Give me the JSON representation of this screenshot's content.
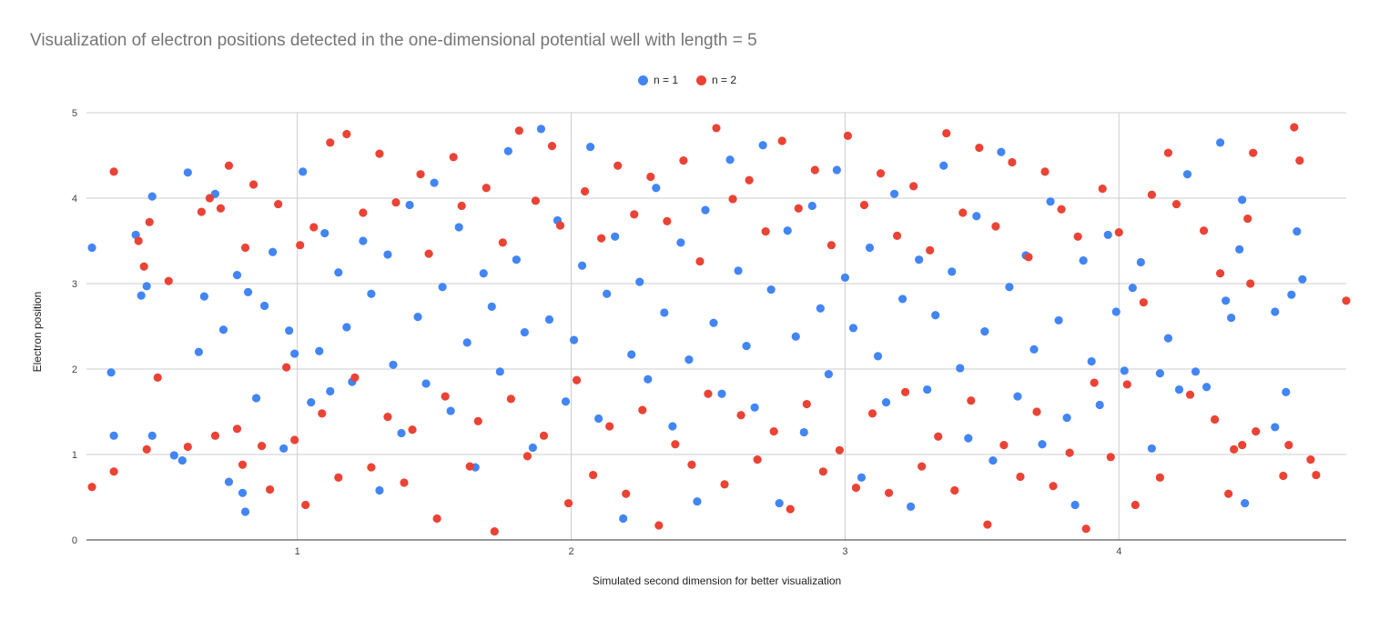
{
  "chart_data": {
    "type": "scatter",
    "title": "Visualization of electron positions detected in the one-dimensional potential well with length = 5",
    "xlabel": "Simulated second dimension for better visualization",
    "ylabel": "Electron position",
    "xlim": [
      0.23,
      4.83
    ],
    "ylim": [
      0,
      5
    ],
    "x_ticks": [
      "1",
      "2",
      "3",
      "4"
    ],
    "y_ticks": [
      "0",
      "1",
      "2",
      "3",
      "4",
      "5"
    ],
    "grid": true,
    "legend_position": "top",
    "series": [
      {
        "name": "n = 1",
        "color": "#4285f4",
        "note_count": "approximate sample of plotted points",
        "points": [
          [
            0.25,
            3.42
          ],
          [
            0.32,
            1.96
          ],
          [
            0.33,
            1.22
          ],
          [
            0.41,
            3.57
          ],
          [
            0.43,
            2.86
          ],
          [
            0.45,
            2.97
          ],
          [
            0.47,
            4.02
          ],
          [
            0.47,
            1.22
          ],
          [
            0.55,
            0.99
          ],
          [
            0.58,
            0.93
          ],
          [
            0.6,
            4.3
          ],
          [
            0.64,
            2.2
          ],
          [
            0.66,
            2.85
          ],
          [
            0.7,
            4.05
          ],
          [
            0.73,
            2.46
          ],
          [
            0.75,
            0.68
          ],
          [
            0.78,
            3.1
          ],
          [
            0.8,
            0.55
          ],
          [
            0.81,
            0.33
          ],
          [
            0.82,
            2.9
          ],
          [
            0.85,
            1.66
          ],
          [
            0.88,
            2.74
          ],
          [
            0.91,
            3.37
          ],
          [
            0.95,
            1.07
          ],
          [
            0.97,
            2.45
          ],
          [
            0.99,
            2.18
          ],
          [
            1.02,
            4.31
          ],
          [
            1.05,
            1.61
          ],
          [
            1.08,
            2.21
          ],
          [
            1.1,
            3.59
          ],
          [
            1.12,
            1.74
          ],
          [
            1.15,
            3.13
          ],
          [
            1.18,
            2.49
          ],
          [
            1.2,
            1.85
          ],
          [
            1.24,
            3.5
          ],
          [
            1.27,
            2.88
          ],
          [
            1.3,
            0.58
          ],
          [
            1.33,
            3.34
          ],
          [
            1.35,
            2.05
          ],
          [
            1.38,
            1.25
          ],
          [
            1.41,
            3.92
          ],
          [
            1.44,
            2.61
          ],
          [
            1.47,
            1.83
          ],
          [
            1.5,
            4.18
          ],
          [
            1.53,
            2.96
          ],
          [
            1.56,
            1.51
          ],
          [
            1.59,
            3.66
          ],
          [
            1.62,
            2.31
          ],
          [
            1.65,
            0.85
          ],
          [
            1.68,
            3.12
          ],
          [
            1.71,
            2.73
          ],
          [
            1.74,
            1.97
          ],
          [
            1.77,
            4.55
          ],
          [
            1.8,
            3.28
          ],
          [
            1.83,
            2.43
          ],
          [
            1.86,
            1.08
          ],
          [
            1.89,
            4.81
          ],
          [
            1.92,
            2.58
          ],
          [
            1.95,
            3.74
          ],
          [
            1.98,
            1.62
          ],
          [
            2.01,
            2.34
          ],
          [
            2.04,
            3.21
          ],
          [
            2.07,
            4.6
          ],
          [
            2.1,
            1.42
          ],
          [
            2.13,
            2.88
          ],
          [
            2.16,
            3.55
          ],
          [
            2.19,
            0.25
          ],
          [
            2.22,
            2.17
          ],
          [
            2.25,
            3.02
          ],
          [
            2.28,
            1.88
          ],
          [
            2.31,
            4.12
          ],
          [
            2.34,
            2.66
          ],
          [
            2.37,
            1.33
          ],
          [
            2.4,
            3.48
          ],
          [
            2.43,
            2.11
          ],
          [
            2.46,
            0.45
          ],
          [
            2.49,
            3.86
          ],
          [
            2.52,
            2.54
          ],
          [
            2.55,
            1.71
          ],
          [
            2.58,
            4.45
          ],
          [
            2.61,
            3.15
          ],
          [
            2.64,
            2.27
          ],
          [
            2.67,
            1.55
          ],
          [
            2.7,
            4.62
          ],
          [
            2.73,
            2.93
          ],
          [
            2.76,
            0.43
          ],
          [
            2.79,
            3.62
          ],
          [
            2.82,
            2.38
          ],
          [
            2.85,
            1.26
          ],
          [
            2.88,
            3.91
          ],
          [
            2.91,
            2.71
          ],
          [
            2.94,
            1.94
          ],
          [
            2.97,
            4.33
          ],
          [
            3.0,
            3.07
          ],
          [
            3.03,
            2.48
          ],
          [
            3.06,
            0.73
          ],
          [
            3.09,
            3.42
          ],
          [
            3.12,
            2.15
          ],
          [
            3.15,
            1.61
          ],
          [
            3.18,
            4.05
          ],
          [
            3.21,
            2.82
          ],
          [
            3.24,
            0.39
          ],
          [
            3.27,
            3.28
          ],
          [
            3.3,
            1.76
          ],
          [
            3.33,
            2.63
          ],
          [
            3.36,
            4.38
          ],
          [
            3.39,
            3.14
          ],
          [
            3.42,
            2.01
          ],
          [
            3.45,
            1.19
          ],
          [
            3.48,
            3.79
          ],
          [
            3.51,
            2.44
          ],
          [
            3.54,
            0.93
          ],
          [
            3.57,
            4.54
          ],
          [
            3.6,
            2.96
          ],
          [
            3.63,
            1.68
          ],
          [
            3.66,
            3.33
          ],
          [
            3.69,
            2.23
          ],
          [
            3.72,
            1.12
          ],
          [
            3.75,
            3.96
          ],
          [
            3.78,
            2.57
          ],
          [
            3.81,
            1.43
          ],
          [
            3.84,
            0.41
          ],
          [
            3.87,
            3.27
          ],
          [
            3.9,
            2.09
          ],
          [
            3.93,
            1.58
          ],
          [
            3.96,
            3.57
          ],
          [
            3.99,
            2.67
          ],
          [
            4.02,
            1.98
          ],
          [
            4.05,
            2.95
          ],
          [
            4.08,
            3.25
          ],
          [
            4.12,
            1.07
          ],
          [
            4.15,
            1.95
          ],
          [
            4.18,
            2.36
          ],
          [
            4.22,
            1.76
          ],
          [
            4.25,
            4.28
          ],
          [
            4.28,
            1.97
          ],
          [
            4.32,
            1.79
          ],
          [
            4.37,
            4.65
          ],
          [
            4.39,
            2.8
          ],
          [
            4.41,
            2.6
          ],
          [
            4.44,
            3.4
          ],
          [
            4.45,
            3.98
          ],
          [
            4.46,
            0.43
          ],
          [
            4.57,
            1.32
          ],
          [
            4.57,
            2.67
          ],
          [
            4.61,
            1.73
          ],
          [
            4.63,
            2.87
          ],
          [
            4.65,
            3.61
          ],
          [
            4.67,
            3.05
          ]
        ]
      },
      {
        "name": "n = 2",
        "color": "#ea4335",
        "note_count": "approximate sample of plotted points",
        "points": [
          [
            0.25,
            0.62
          ],
          [
            0.33,
            0.8
          ],
          [
            0.33,
            4.31
          ],
          [
            0.42,
            3.5
          ],
          [
            0.44,
            3.2
          ],
          [
            0.45,
            1.06
          ],
          [
            0.46,
            3.72
          ],
          [
            0.49,
            1.9
          ],
          [
            0.53,
            3.03
          ],
          [
            0.6,
            1.09
          ],
          [
            0.65,
            3.84
          ],
          [
            0.68,
            4.0
          ],
          [
            0.7,
            1.22
          ],
          [
            0.72,
            3.88
          ],
          [
            0.75,
            4.38
          ],
          [
            0.78,
            1.3
          ],
          [
            0.8,
            0.88
          ],
          [
            0.81,
            3.42
          ],
          [
            0.84,
            4.16
          ],
          [
            0.87,
            1.1
          ],
          [
            0.9,
            0.59
          ],
          [
            0.93,
            3.93
          ],
          [
            0.96,
            2.02
          ],
          [
            0.99,
            1.17
          ],
          [
            1.01,
            3.45
          ],
          [
            1.03,
            0.41
          ],
          [
            1.06,
            3.66
          ],
          [
            1.09,
            1.48
          ],
          [
            1.12,
            4.65
          ],
          [
            1.15,
            0.73
          ],
          [
            1.18,
            4.75
          ],
          [
            1.21,
            1.9
          ],
          [
            1.24,
            3.83
          ],
          [
            1.27,
            0.85
          ],
          [
            1.3,
            4.52
          ],
          [
            1.33,
            1.44
          ],
          [
            1.36,
            3.95
          ],
          [
            1.39,
            0.67
          ],
          [
            1.42,
            1.29
          ],
          [
            1.45,
            4.28
          ],
          [
            1.48,
            3.35
          ],
          [
            1.51,
            0.25
          ],
          [
            1.54,
            1.68
          ],
          [
            1.57,
            4.48
          ],
          [
            1.6,
            3.91
          ],
          [
            1.63,
            0.86
          ],
          [
            1.66,
            1.39
          ],
          [
            1.69,
            4.12
          ],
          [
            1.72,
            0.1
          ],
          [
            1.75,
            3.48
          ],
          [
            1.78,
            1.65
          ],
          [
            1.81,
            4.79
          ],
          [
            1.84,
            0.98
          ],
          [
            1.87,
            3.97
          ],
          [
            1.9,
            1.22
          ],
          [
            1.93,
            4.61
          ],
          [
            1.96,
            3.68
          ],
          [
            1.99,
            0.43
          ],
          [
            2.02,
            1.87
          ],
          [
            2.05,
            4.08
          ],
          [
            2.08,
            0.76
          ],
          [
            2.11,
            3.53
          ],
          [
            2.14,
            1.33
          ],
          [
            2.17,
            4.38
          ],
          [
            2.2,
            0.54
          ],
          [
            2.23,
            3.81
          ],
          [
            2.26,
            1.52
          ],
          [
            2.29,
            4.25
          ],
          [
            2.32,
            0.17
          ],
          [
            2.35,
            3.73
          ],
          [
            2.38,
            1.12
          ],
          [
            2.41,
            4.44
          ],
          [
            2.44,
            0.88
          ],
          [
            2.47,
            3.26
          ],
          [
            2.5,
            1.71
          ],
          [
            2.53,
            4.82
          ],
          [
            2.56,
            0.65
          ],
          [
            2.59,
            3.99
          ],
          [
            2.62,
            1.46
          ],
          [
            2.65,
            4.21
          ],
          [
            2.68,
            0.94
          ],
          [
            2.71,
            3.61
          ],
          [
            2.74,
            1.27
          ],
          [
            2.77,
            4.67
          ],
          [
            2.8,
            0.36
          ],
          [
            2.83,
            3.88
          ],
          [
            2.86,
            1.59
          ],
          [
            2.89,
            4.33
          ],
          [
            2.92,
            0.8
          ],
          [
            2.95,
            3.45
          ],
          [
            2.98,
            1.05
          ],
          [
            3.01,
            4.73
          ],
          [
            3.04,
            0.61
          ],
          [
            3.07,
            3.92
          ],
          [
            3.1,
            1.48
          ],
          [
            3.13,
            4.29
          ],
          [
            3.16,
            0.55
          ],
          [
            3.19,
            3.56
          ],
          [
            3.22,
            1.73
          ],
          [
            3.25,
            4.14
          ],
          [
            3.28,
            0.86
          ],
          [
            3.31,
            3.39
          ],
          [
            3.34,
            1.21
          ],
          [
            3.37,
            4.76
          ],
          [
            3.4,
            0.58
          ],
          [
            3.43,
            3.83
          ],
          [
            3.46,
            1.63
          ],
          [
            3.49,
            4.59
          ],
          [
            3.52,
            0.18
          ],
          [
            3.55,
            3.67
          ],
          [
            3.58,
            1.11
          ],
          [
            3.61,
            4.42
          ],
          [
            3.64,
            0.74
          ],
          [
            3.67,
            3.31
          ],
          [
            3.7,
            1.5
          ],
          [
            3.73,
            4.31
          ],
          [
            3.76,
            0.63
          ],
          [
            3.79,
            3.87
          ],
          [
            3.82,
            1.02
          ],
          [
            3.85,
            3.55
          ],
          [
            3.88,
            0.13
          ],
          [
            3.91,
            1.84
          ],
          [
            3.94,
            4.11
          ],
          [
            3.97,
            0.97
          ],
          [
            4.0,
            3.6
          ],
          [
            4.03,
            1.82
          ],
          [
            4.06,
            0.41
          ],
          [
            4.09,
            2.78
          ],
          [
            4.12,
            4.04
          ],
          [
            4.15,
            0.73
          ],
          [
            4.18,
            4.53
          ],
          [
            4.21,
            3.93
          ],
          [
            4.26,
            1.7
          ],
          [
            4.31,
            3.62
          ],
          [
            4.35,
            1.41
          ],
          [
            4.37,
            3.12
          ],
          [
            4.4,
            0.54
          ],
          [
            4.42,
            1.06
          ],
          [
            4.45,
            1.11
          ],
          [
            4.47,
            3.76
          ],
          [
            4.48,
            3.0
          ],
          [
            4.49,
            4.53
          ],
          [
            4.5,
            1.27
          ],
          [
            4.6,
            0.75
          ],
          [
            4.62,
            1.11
          ],
          [
            4.64,
            4.83
          ],
          [
            4.66,
            4.44
          ],
          [
            4.7,
            0.94
          ],
          [
            4.72,
            0.76
          ],
          [
            4.83,
            2.8
          ]
        ]
      }
    ]
  },
  "legend": {
    "items": [
      {
        "label": "n = 1",
        "color": "#4285f4"
      },
      {
        "label": "n = 2",
        "color": "#ea4335"
      }
    ]
  }
}
